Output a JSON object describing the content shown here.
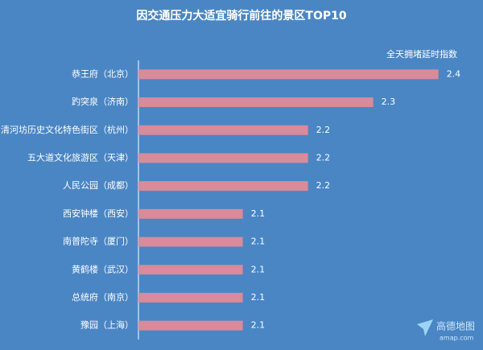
{
  "chart_data": {
    "type": "bar",
    "orientation": "horizontal",
    "title": "因交通压力大适宜骑行前往的景区TOP10",
    "value_axis_label": "全天拥堵延时指数",
    "categories": [
      "恭王府（北京）",
      "趵突泉（济南）",
      "清河坊历史文化特色街区（杭州）",
      "五大道文化旅游区（天津）",
      "人民公园（成都）",
      "西安钟楼（西安）",
      "南普陀寺（厦门）",
      "黄鹤楼（武汉）",
      "总统府（南京）",
      "豫园（上海）"
    ],
    "values": [
      2.4,
      2.3,
      2.2,
      2.2,
      2.2,
      2.1,
      2.1,
      2.1,
      2.1,
      2.1
    ],
    "color": "#d98a9b",
    "xlim": [
      1.94,
      2.43
    ]
  },
  "logo": {
    "name": "高德地图",
    "url": "amap.com"
  }
}
